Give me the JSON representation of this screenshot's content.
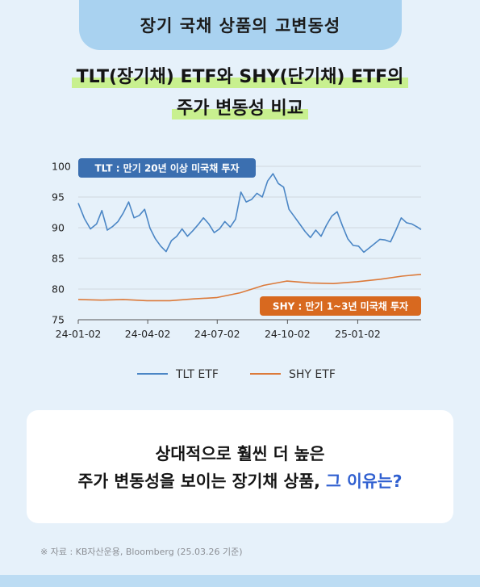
{
  "header": {
    "tab_title": "장기 국채 상품의 고변동성"
  },
  "title": {
    "line1": "TLT(장기채) ETF와 SHY(단기채) ETF의",
    "line2": "주가 변동성 비교"
  },
  "chart_data": {
    "type": "line",
    "x_ticks": [
      "24-01-02",
      "24-04-02",
      "24-07-02",
      "24-10-02",
      "25-01-02"
    ],
    "x_range": [
      "2024-01-02",
      "2025-03-26"
    ],
    "ylim": [
      75,
      100
    ],
    "y_ticks": [
      100,
      95,
      90,
      85,
      80,
      75
    ],
    "grid": true,
    "legend_position": "bottom",
    "annotations": [
      "TLT : 만기 20년 이상 미국채 투자",
      "SHY : 만기 1~3년 미국채 투자"
    ],
    "series": [
      {
        "name": "TLT ETF",
        "color": "#4b86c5",
        "x": [
          "2024-01-02",
          "2024-01-10",
          "2024-01-18",
          "2024-01-26",
          "2024-02-02",
          "2024-02-09",
          "2024-02-16",
          "2024-02-23",
          "2024-03-01",
          "2024-03-08",
          "2024-03-15",
          "2024-03-22",
          "2024-03-29",
          "2024-04-05",
          "2024-04-12",
          "2024-04-19",
          "2024-04-26",
          "2024-05-03",
          "2024-05-10",
          "2024-05-17",
          "2024-05-24",
          "2024-05-31",
          "2024-06-07",
          "2024-06-14",
          "2024-06-21",
          "2024-06-28",
          "2024-07-05",
          "2024-07-12",
          "2024-07-19",
          "2024-07-26",
          "2024-08-02",
          "2024-08-09",
          "2024-08-16",
          "2024-08-23",
          "2024-08-30",
          "2024-09-06",
          "2024-09-13",
          "2024-09-20",
          "2024-09-27",
          "2024-10-04",
          "2024-10-11",
          "2024-10-18",
          "2024-10-25",
          "2024-11-01",
          "2024-11-08",
          "2024-11-15",
          "2024-11-22",
          "2024-11-29",
          "2024-12-06",
          "2024-12-13",
          "2024-12-20",
          "2024-12-27",
          "2025-01-03",
          "2025-01-10",
          "2025-01-17",
          "2025-01-24",
          "2025-01-31",
          "2025-02-07",
          "2025-02-14",
          "2025-02-21",
          "2025-02-28",
          "2025-03-07",
          "2025-03-14",
          "2025-03-21",
          "2025-03-26"
        ],
        "values": [
          94.0,
          91.5,
          89.8,
          90.6,
          92.8,
          89.6,
          90.2,
          91.0,
          92.4,
          94.2,
          91.6,
          92.0,
          93.0,
          89.9,
          88.2,
          87.0,
          86.1,
          87.9,
          88.6,
          89.8,
          88.6,
          89.5,
          90.5,
          91.6,
          90.6,
          89.2,
          89.8,
          91.0,
          90.1,
          91.4,
          95.8,
          94.2,
          94.6,
          95.6,
          95.0,
          97.6,
          98.8,
          97.2,
          96.6,
          93.0,
          91.8,
          90.6,
          89.4,
          88.4,
          89.6,
          88.6,
          90.4,
          91.9,
          92.6,
          90.3,
          88.2,
          87.1,
          87.0,
          86.0,
          86.7,
          87.4,
          88.1,
          88.0,
          87.7,
          89.6,
          91.6,
          90.8,
          90.6,
          90.1,
          89.7
        ]
      },
      {
        "name": "SHY ETF",
        "color": "#dc7a3a",
        "x": [
          "2024-01-02",
          "2024-02-01",
          "2024-03-01",
          "2024-04-01",
          "2024-05-01",
          "2024-06-01",
          "2024-07-01",
          "2024-08-01",
          "2024-09-01",
          "2024-10-01",
          "2024-11-01",
          "2024-12-01",
          "2025-01-01",
          "2025-02-01",
          "2025-03-01",
          "2025-03-26"
        ],
        "values": [
          78.3,
          78.2,
          78.3,
          78.1,
          78.1,
          78.4,
          78.6,
          79.4,
          80.6,
          81.3,
          81.0,
          80.9,
          81.2,
          81.6,
          82.1,
          82.4
        ]
      }
    ]
  },
  "callout": {
    "line1": "상대적으로 훨씬 더 높은",
    "line2_prefix": "주가 변동성을 보이는 장기채 상품, ",
    "line2_highlight": "그 이유는?"
  },
  "source": "※ 자료 : KB자산운용, Bloomberg (25.03.26 기준)"
}
